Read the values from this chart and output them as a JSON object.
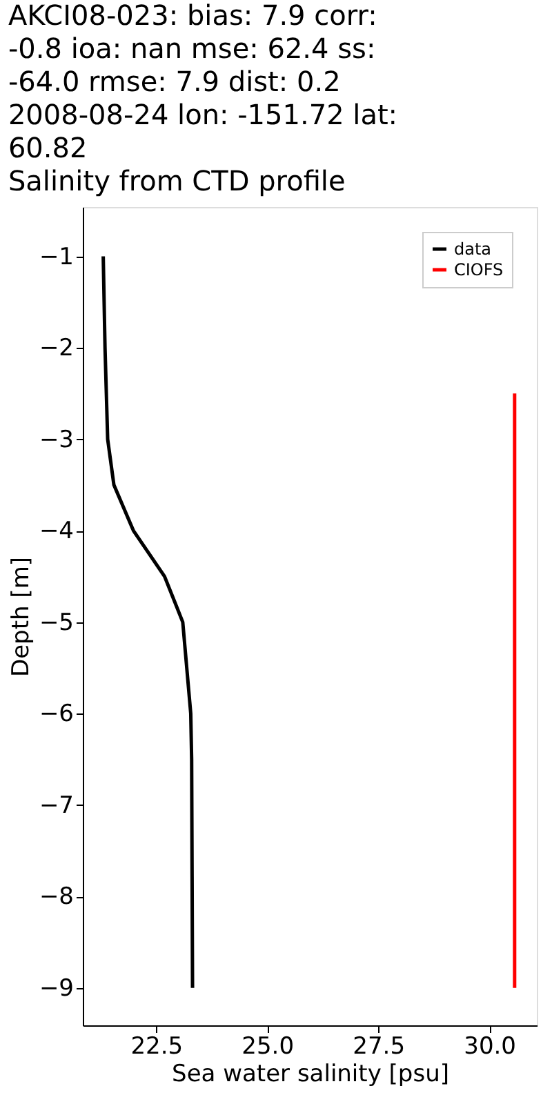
{
  "chart_data": {
    "type": "line",
    "title": [
      "AKCI08-023: bias: 7.9  corr:",
      "-0.8  ioa: nan  mse: 62.4  ss:",
      "-64.0  rmse: 7.9  dist: 0.2",
      "2008-08-24 lon: -151.72 lat:",
      "60.82",
      "Salinity from CTD profile"
    ],
    "xlabel": "Sea water salinity [psu]",
    "ylabel": "Depth [m]",
    "series": [
      {
        "name": "data",
        "color": "#000000",
        "x": [
          21.31,
          21.35,
          21.41,
          21.55,
          21.99,
          22.69,
          23.1,
          23.28,
          23.3,
          23.32
        ],
        "values": [
          -1,
          -2,
          -3,
          -3.5,
          -4,
          -4.5,
          -5,
          -6,
          -6.5,
          -9
        ]
      },
      {
        "name": "CIOFS",
        "color": "#ff0000",
        "x": [
          30.57,
          30.57
        ],
        "values": [
          -2.5,
          -9
        ]
      }
    ],
    "xlim": [
      20.85,
      31.07
    ],
    "ylim": [
      -9.41,
      -0.46
    ],
    "xticks": [
      22.5,
      {
        "value": 25,
        "label": "25.0"
      },
      27.5,
      {
        "value": 30,
        "label": "30.0"
      }
    ],
    "yticks": [
      -1,
      -2,
      -3,
      -4,
      -5,
      -6,
      -7,
      -8,
      -9
    ],
    "grid": false,
    "legend": "top right"
  }
}
